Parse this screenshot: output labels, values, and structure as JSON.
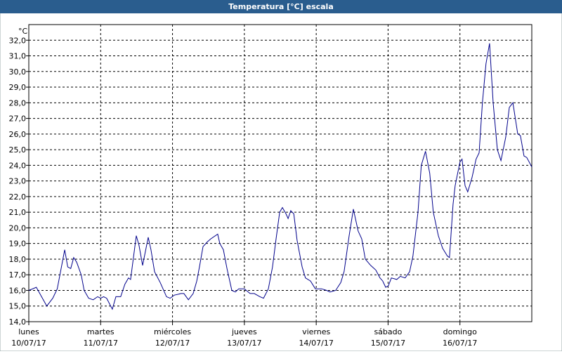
{
  "chart_data": {
    "type": "line",
    "title": "Temperatura [°C] escala",
    "ylabel": "°C",
    "color": "#00008b",
    "xlim": [
      0,
      168
    ],
    "ylim": [
      14,
      33
    ],
    "xticks": [
      {
        "value": 0,
        "label": "lunes",
        "date": "10/07/17"
      },
      {
        "value": 24,
        "label": "martes",
        "date": "11/07/17"
      },
      {
        "value": 48,
        "label": "miércoles",
        "date": "12/07/17"
      },
      {
        "value": 72,
        "label": "jueves",
        "date": "13/07/17"
      },
      {
        "value": 96,
        "label": "viernes",
        "date": "14/07/17"
      },
      {
        "value": 120,
        "label": "sábado",
        "date": "15/07/17"
      },
      {
        "value": 144,
        "label": "domingo",
        "date": "16/07/17"
      }
    ],
    "yticks": [
      {
        "value": 14,
        "label": "14,0"
      },
      {
        "value": 15,
        "label": "15,0"
      },
      {
        "value": 16,
        "label": "16,0"
      },
      {
        "value": 17,
        "label": "17,0"
      },
      {
        "value": 18,
        "label": "18,0"
      },
      {
        "value": 19,
        "label": "19,0"
      },
      {
        "value": 20,
        "label": "20,0"
      },
      {
        "value": 21,
        "label": "21,0"
      },
      {
        "value": 22,
        "label": "22,0"
      },
      {
        "value": 23,
        "label": "23,0"
      },
      {
        "value": 24,
        "label": "24,0"
      },
      {
        "value": 25,
        "label": "25,0"
      },
      {
        "value": 26,
        "label": "26,0"
      },
      {
        "value": 27,
        "label": "27,0"
      },
      {
        "value": 28,
        "label": "28,0"
      },
      {
        "value": 29,
        "label": "29,0"
      },
      {
        "value": 30,
        "label": "30,0"
      },
      {
        "value": 31,
        "label": "31,0"
      },
      {
        "value": 32,
        "label": "32,0"
      }
    ],
    "grid": true,
    "x": [
      0,
      2.5,
      6,
      8,
      9.5,
      12,
      13,
      14,
      15,
      16,
      17.5,
      18.5,
      20,
      21.5,
      23,
      24,
      25,
      26,
      27.9,
      29.1,
      30.7,
      32.1,
      33.3,
      34,
      35.9,
      36.8,
      38,
      39.9,
      40.8,
      42,
      43.9,
      46,
      47.2,
      48.6,
      50.9,
      51.8,
      53.3,
      54.9,
      56.1,
      57,
      58.2,
      59.6,
      60.8,
      63.1,
      63.8,
      65,
      66.2,
      67.8,
      69,
      70.1,
      72,
      73.9,
      75.3,
      77.2,
      78.4,
      80,
      81.4,
      82.6,
      83.8,
      84.7,
      85.9,
      86.6,
      87.5,
      88.5,
      89.6,
      91.3,
      92.4,
      94.1,
      95.7,
      97.8,
      99.5,
      100.6,
      102.5,
      104.2,
      105.3,
      107,
      108.4,
      110,
      111.2,
      112.4,
      114.2,
      115.9,
      117.3,
      118.2,
      119.2,
      120.1,
      121.1,
      122.9,
      124.1,
      125.7,
      127.2,
      128.3,
      130,
      131.1,
      132.5,
      133.9,
      135.1,
      136.8,
      138.2,
      139.8,
      140.5,
      141.7,
      142.4,
      144,
      144.7,
      145.7,
      146.6,
      148,
      149.4,
      150.4,
      151.5,
      152.7,
      153.9,
      155.1,
      156.5,
      157.7,
      159.3,
      160.5,
      161.7,
      163.3,
      164.2,
      165.4,
      166.3,
      168
    ],
    "values": [
      16.0,
      16.2,
      15.0,
      15.5,
      16.1,
      18.6,
      17.5,
      17.4,
      18.1,
      17.8,
      17.0,
      16.0,
      15.5,
      15.4,
      15.6,
      15.5,
      15.6,
      15.5,
      14.8,
      15.6,
      15.6,
      16.4,
      16.8,
      16.7,
      19.5,
      18.9,
      17.6,
      19.4,
      18.6,
      17.2,
      16.5,
      15.6,
      15.5,
      15.7,
      15.8,
      15.8,
      15.4,
      15.8,
      16.6,
      17.5,
      18.8,
      19.1,
      19.3,
      19.6,
      19.0,
      18.6,
      17.4,
      16.0,
      15.9,
      16.1,
      16.1,
      15.8,
      15.8,
      15.6,
      15.5,
      16.1,
      17.5,
      19.3,
      21.0,
      21.3,
      20.9,
      20.6,
      21.1,
      20.9,
      19.2,
      17.5,
      16.8,
      16.6,
      16.1,
      16.1,
      16.0,
      15.9,
      16.0,
      16.5,
      17.2,
      19.5,
      21.2,
      19.8,
      19.3,
      18.0,
      17.6,
      17.3,
      16.8,
      16.6,
      16.2,
      16.3,
      16.8,
      16.7,
      16.9,
      16.8,
      17.2,
      18.2,
      21.0,
      24.0,
      24.9,
      23.5,
      21.0,
      19.5,
      18.7,
      18.2,
      18.1,
      21.5,
      22.7,
      24.2,
      24.4,
      22.7,
      22.3,
      23.2,
      24.4,
      24.8,
      28.0,
      30.5,
      31.8,
      28.0,
      25.0,
      24.3,
      25.8,
      27.7,
      28.0,
      26.0,
      25.9,
      24.6,
      24.5,
      23.9
    ]
  }
}
